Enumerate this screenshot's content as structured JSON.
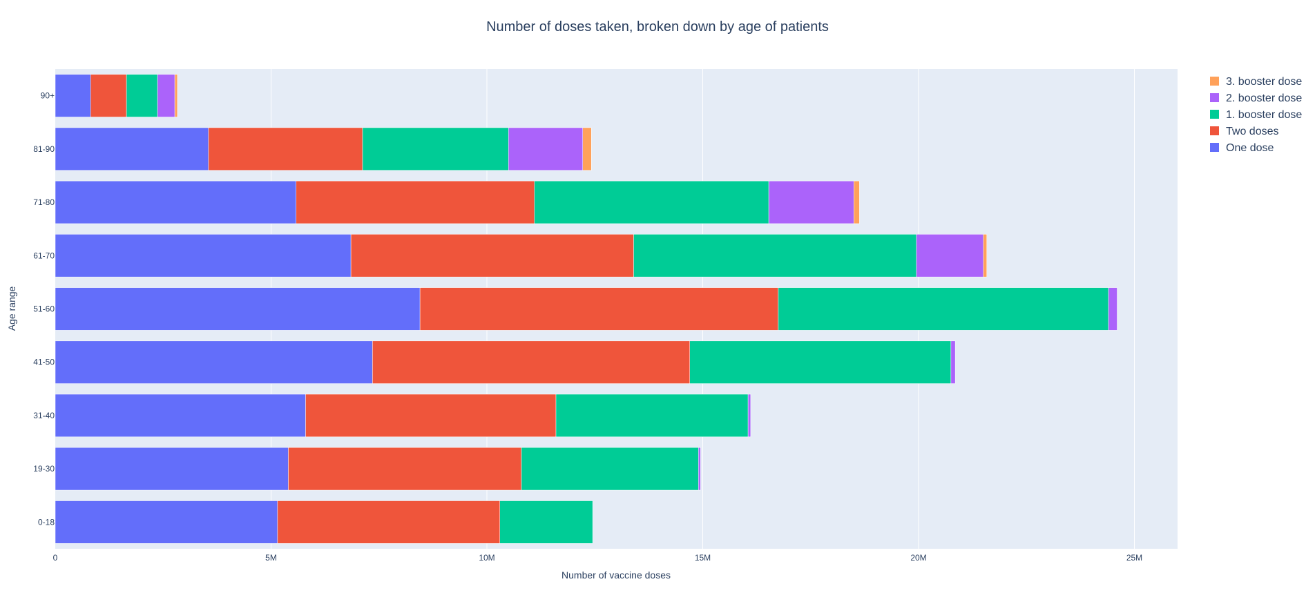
{
  "chart_data": {
    "type": "bar",
    "orientation": "horizontal",
    "barmode": "stack",
    "title": "Number of doses taken, broken down by age of patients",
    "xlabel": "Number of vaccine doses",
    "ylabel": "Age range",
    "xlim": [
      0,
      26000000
    ],
    "x_ticks": [
      {
        "value": 0,
        "label": "0"
      },
      {
        "value": 5000000,
        "label": "5M"
      },
      {
        "value": 10000000,
        "label": "10M"
      },
      {
        "value": 15000000,
        "label": "15M"
      },
      {
        "value": 20000000,
        "label": "20M"
      },
      {
        "value": 25000000,
        "label": "25M"
      }
    ],
    "grid": true,
    "legend_position": "top-right",
    "categories": [
      "0-18",
      "19-30",
      "31-40",
      "41-50",
      "51-60",
      "61-70",
      "71-80",
      "81-90",
      "90+"
    ],
    "series": [
      {
        "name": "One dose",
        "color": "#636efa",
        "values": [
          5150000,
          5400000,
          5800000,
          7350000,
          8450000,
          6850000,
          5580000,
          3550000,
          820000
        ]
      },
      {
        "name": "Two doses",
        "color": "#ef553b",
        "values": [
          5150000,
          5400000,
          5800000,
          7350000,
          8300000,
          6550000,
          5520000,
          3570000,
          830000
        ]
      },
      {
        "name": "1. booster dose",
        "color": "#00cc96",
        "values": [
          2150000,
          4100000,
          4450000,
          6050000,
          7650000,
          6550000,
          5430000,
          3380000,
          720000
        ]
      },
      {
        "name": "2. booster dose",
        "color": "#ab63fa",
        "values": [
          0,
          50000,
          60000,
          100000,
          200000,
          1550000,
          1970000,
          1720000,
          400000
        ]
      },
      {
        "name": "3. booster dose",
        "color": "#ffa15a",
        "values": [
          0,
          0,
          0,
          0,
          0,
          80000,
          130000,
          200000,
          60000
        ]
      }
    ]
  }
}
